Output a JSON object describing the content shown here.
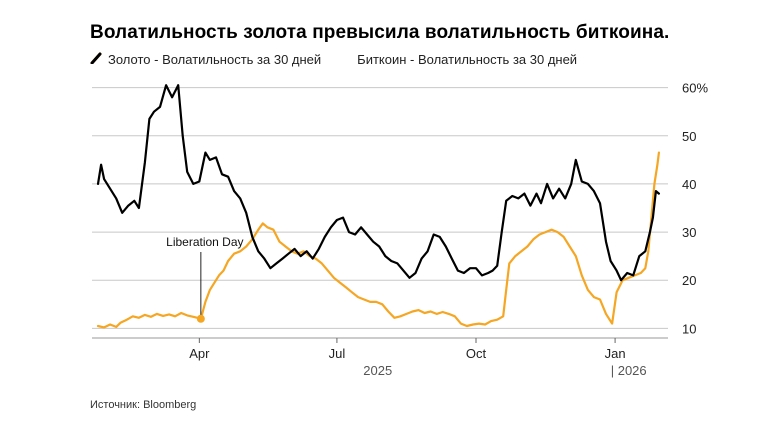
{
  "title": "Волатильность золота превысила волатильность биткоина.",
  "source": "Источник: Bloomberg",
  "colors": {
    "gold": "#f5a623",
    "bitcoin": "#000000",
    "grid": "#c8c8c8"
  },
  "legend": [
    {
      "label": "Золото - Волатильность за 30 дней",
      "color": "#f5a623"
    },
    {
      "label": "Биткоин - Волатильность за 30 дней",
      "color": "#000000"
    }
  ],
  "chart_data": {
    "type": "line",
    "title": "Волатильность золота превысила волатильность биткоина.",
    "y_ticks": [
      10,
      20,
      30,
      40,
      50,
      60
    ],
    "y_tick_labels": [
      "10",
      "20",
      "30",
      "40",
      "50",
      "60%"
    ],
    "ylim": [
      8,
      62
    ],
    "y_axis_side": "right",
    "grid": true,
    "legend_placement": "top-left",
    "xlim": [
      "2025-01-20",
      "2026-02-05"
    ],
    "x_ticks": [
      {
        "date": "2025-04-01",
        "label": "Apr"
      },
      {
        "date": "2025-07-01",
        "label": "Jul"
      },
      {
        "date": "2025-10-01",
        "label": "Oct"
      },
      {
        "date": "2026-01-01",
        "label": "Jan"
      }
    ],
    "year_labels": [
      {
        "date": "2025-07-28",
        "label": "2025"
      },
      {
        "date": "2026-01-10",
        "label": "| 2026"
      }
    ],
    "annotations": [
      {
        "label": "Liberation Day",
        "date": "2025-04-02",
        "value": 12.0
      }
    ],
    "series": [
      {
        "name": "Золото - Волатильность за 30 дней",
        "color": "#f5a623",
        "points": [
          [
            "2025-01-24",
            10.5
          ],
          [
            "2025-01-28",
            10.2
          ],
          [
            "2025-02-01",
            10.8
          ],
          [
            "2025-02-05",
            10.3
          ],
          [
            "2025-02-08",
            11.2
          ],
          [
            "2025-02-12",
            11.8
          ],
          [
            "2025-02-16",
            12.5
          ],
          [
            "2025-02-20",
            12.2
          ],
          [
            "2025-02-24",
            12.8
          ],
          [
            "2025-02-28",
            12.4
          ],
          [
            "2025-03-04",
            13.0
          ],
          [
            "2025-03-08",
            12.6
          ],
          [
            "2025-03-12",
            12.9
          ],
          [
            "2025-03-16",
            12.5
          ],
          [
            "2025-03-20",
            13.2
          ],
          [
            "2025-03-24",
            12.7
          ],
          [
            "2025-03-28",
            12.4
          ],
          [
            "2025-04-02",
            12.0
          ],
          [
            "2025-04-05",
            15.5
          ],
          [
            "2025-04-08",
            18.0
          ],
          [
            "2025-04-11",
            19.5
          ],
          [
            "2025-04-14",
            21.0
          ],
          [
            "2025-04-17",
            22.0
          ],
          [
            "2025-04-20",
            24.0
          ],
          [
            "2025-04-24",
            25.5
          ],
          [
            "2025-04-28",
            26.0
          ],
          [
            "2025-05-02",
            27.0
          ],
          [
            "2025-05-06",
            28.5
          ],
          [
            "2025-05-10",
            30.5
          ],
          [
            "2025-05-13",
            31.8
          ],
          [
            "2025-05-16",
            31.0
          ],
          [
            "2025-05-20",
            30.5
          ],
          [
            "2025-05-24",
            28.0
          ],
          [
            "2025-05-28",
            27.0
          ],
          [
            "2025-06-01",
            26.0
          ],
          [
            "2025-06-05",
            25.5
          ],
          [
            "2025-06-09",
            26.0
          ],
          [
            "2025-06-13",
            25.0
          ],
          [
            "2025-06-17",
            24.5
          ],
          [
            "2025-06-21",
            23.5
          ],
          [
            "2025-06-25",
            22.0
          ],
          [
            "2025-06-29",
            20.5
          ],
          [
            "2025-07-03",
            19.5
          ],
          [
            "2025-07-07",
            18.5
          ],
          [
            "2025-07-11",
            17.5
          ],
          [
            "2025-07-15",
            16.5
          ],
          [
            "2025-07-19",
            16.0
          ],
          [
            "2025-07-23",
            15.5
          ],
          [
            "2025-07-27",
            15.5
          ],
          [
            "2025-07-31",
            15.0
          ],
          [
            "2025-08-04",
            13.5
          ],
          [
            "2025-08-08",
            12.2
          ],
          [
            "2025-08-12",
            12.5
          ],
          [
            "2025-08-16",
            13.0
          ],
          [
            "2025-08-20",
            13.5
          ],
          [
            "2025-08-24",
            13.8
          ],
          [
            "2025-08-28",
            13.2
          ],
          [
            "2025-09-01",
            13.5
          ],
          [
            "2025-09-05",
            13.0
          ],
          [
            "2025-09-09",
            13.4
          ],
          [
            "2025-09-13",
            13.0
          ],
          [
            "2025-09-17",
            12.5
          ],
          [
            "2025-09-21",
            11.0
          ],
          [
            "2025-09-25",
            10.5
          ],
          [
            "2025-09-29",
            10.8
          ],
          [
            "2025-10-03",
            11.0
          ],
          [
            "2025-10-07",
            10.8
          ],
          [
            "2025-10-11",
            11.5
          ],
          [
            "2025-10-15",
            11.8
          ],
          [
            "2025-10-19",
            12.5
          ],
          [
            "2025-10-21",
            18.0
          ],
          [
            "2025-10-23",
            23.5
          ],
          [
            "2025-10-27",
            25.0
          ],
          [
            "2025-10-31",
            26.0
          ],
          [
            "2025-11-04",
            27.0
          ],
          [
            "2025-11-08",
            28.5
          ],
          [
            "2025-11-12",
            29.5
          ],
          [
            "2025-11-16",
            30.0
          ],
          [
            "2025-11-20",
            30.5
          ],
          [
            "2025-11-24",
            30.0
          ],
          [
            "2025-11-28",
            29.0
          ],
          [
            "2025-12-02",
            27.0
          ],
          [
            "2025-12-06",
            25.0
          ],
          [
            "2025-12-10",
            21.0
          ],
          [
            "2025-12-14",
            18.0
          ],
          [
            "2025-12-18",
            16.5
          ],
          [
            "2025-12-22",
            16.0
          ],
          [
            "2025-12-26",
            13.0
          ],
          [
            "2025-12-30",
            11.0
          ],
          [
            "2026-01-02",
            17.5
          ],
          [
            "2026-01-06",
            20.0
          ],
          [
            "2026-01-10",
            20.5
          ],
          [
            "2026-01-14",
            21.0
          ],
          [
            "2026-01-18",
            21.5
          ],
          [
            "2026-01-21",
            22.5
          ],
          [
            "2026-01-23",
            26.0
          ],
          [
            "2026-01-25",
            33.0
          ],
          [
            "2026-01-27",
            40.0
          ],
          [
            "2026-01-29",
            44.0
          ],
          [
            "2026-01-30",
            46.5
          ]
        ]
      },
      {
        "name": "Биткоин - Волатильность за 30 дней",
        "color": "#000000",
        "points": [
          [
            "2025-01-24",
            40.0
          ],
          [
            "2025-01-26",
            44.0
          ],
          [
            "2025-01-28",
            41.0
          ],
          [
            "2025-02-01",
            39.0
          ],
          [
            "2025-02-05",
            37.0
          ],
          [
            "2025-02-09",
            34.0
          ],
          [
            "2025-02-13",
            35.5
          ],
          [
            "2025-02-17",
            36.5
          ],
          [
            "2025-02-20",
            35.0
          ],
          [
            "2025-02-24",
            44.5
          ],
          [
            "2025-02-27",
            53.5
          ],
          [
            "2025-03-02",
            55.0
          ],
          [
            "2025-03-06",
            56.0
          ],
          [
            "2025-03-10",
            60.5
          ],
          [
            "2025-03-14",
            58.0
          ],
          [
            "2025-03-18",
            60.5
          ],
          [
            "2025-03-21",
            50.0
          ],
          [
            "2025-03-24",
            42.5
          ],
          [
            "2025-03-28",
            40.0
          ],
          [
            "2025-04-01",
            40.5
          ],
          [
            "2025-04-05",
            46.5
          ],
          [
            "2025-04-08",
            45.0
          ],
          [
            "2025-04-12",
            45.5
          ],
          [
            "2025-04-16",
            42.0
          ],
          [
            "2025-04-20",
            41.5
          ],
          [
            "2025-04-24",
            38.5
          ],
          [
            "2025-04-28",
            37.0
          ],
          [
            "2025-05-02",
            34.0
          ],
          [
            "2025-05-06",
            29.0
          ],
          [
            "2025-05-10",
            26.0
          ],
          [
            "2025-05-14",
            24.5
          ],
          [
            "2025-05-18",
            22.5
          ],
          [
            "2025-05-22",
            23.5
          ],
          [
            "2025-05-26",
            24.5
          ],
          [
            "2025-05-30",
            25.5
          ],
          [
            "2025-06-03",
            26.5
          ],
          [
            "2025-06-07",
            25.0
          ],
          [
            "2025-06-11",
            26.0
          ],
          [
            "2025-06-15",
            24.5
          ],
          [
            "2025-06-19",
            26.5
          ],
          [
            "2025-06-23",
            29.0
          ],
          [
            "2025-06-27",
            31.0
          ],
          [
            "2025-07-01",
            32.5
          ],
          [
            "2025-07-05",
            33.0
          ],
          [
            "2025-07-09",
            30.0
          ],
          [
            "2025-07-13",
            29.5
          ],
          [
            "2025-07-17",
            31.0
          ],
          [
            "2025-07-21",
            29.5
          ],
          [
            "2025-07-25",
            28.0
          ],
          [
            "2025-07-29",
            27.0
          ],
          [
            "2025-08-02",
            25.0
          ],
          [
            "2025-08-06",
            24.0
          ],
          [
            "2025-08-10",
            23.5
          ],
          [
            "2025-08-14",
            22.0
          ],
          [
            "2025-08-18",
            20.5
          ],
          [
            "2025-08-22",
            21.5
          ],
          [
            "2025-08-26",
            24.5
          ],
          [
            "2025-08-30",
            26.0
          ],
          [
            "2025-09-03",
            29.5
          ],
          [
            "2025-09-07",
            29.0
          ],
          [
            "2025-09-11",
            27.0
          ],
          [
            "2025-09-15",
            24.5
          ],
          [
            "2025-09-19",
            22.0
          ],
          [
            "2025-09-23",
            21.5
          ],
          [
            "2025-09-27",
            22.5
          ],
          [
            "2025-10-01",
            22.5
          ],
          [
            "2025-10-05",
            21.0
          ],
          [
            "2025-10-09",
            21.5
          ],
          [
            "2025-10-12",
            22.0
          ],
          [
            "2025-10-15",
            23.0
          ],
          [
            "2025-10-18",
            30.0
          ],
          [
            "2025-10-21",
            36.5
          ],
          [
            "2025-10-25",
            37.5
          ],
          [
            "2025-10-29",
            37.0
          ],
          [
            "2025-11-02",
            38.0
          ],
          [
            "2025-11-06",
            35.5
          ],
          [
            "2025-11-10",
            38.0
          ],
          [
            "2025-11-13",
            36.0
          ],
          [
            "2025-11-17",
            40.0
          ],
          [
            "2025-11-21",
            37.0
          ],
          [
            "2025-11-25",
            39.0
          ],
          [
            "2025-11-29",
            37.0
          ],
          [
            "2025-12-03",
            40.0
          ],
          [
            "2025-12-06",
            45.0
          ],
          [
            "2025-12-10",
            40.5
          ],
          [
            "2025-12-14",
            40.0
          ],
          [
            "2025-12-18",
            38.5
          ],
          [
            "2025-12-22",
            36.0
          ],
          [
            "2025-12-26",
            28.0
          ],
          [
            "2025-12-29",
            24.0
          ],
          [
            "2026-01-02",
            22.0
          ],
          [
            "2026-01-05",
            20.0
          ],
          [
            "2026-01-09",
            21.5
          ],
          [
            "2026-01-13",
            21.0
          ],
          [
            "2026-01-17",
            25.0
          ],
          [
            "2026-01-21",
            26.0
          ],
          [
            "2026-01-24",
            30.0
          ],
          [
            "2026-01-26",
            33.0
          ],
          [
            "2026-01-28",
            38.5
          ],
          [
            "2026-01-30",
            38.0
          ]
        ]
      }
    ]
  }
}
